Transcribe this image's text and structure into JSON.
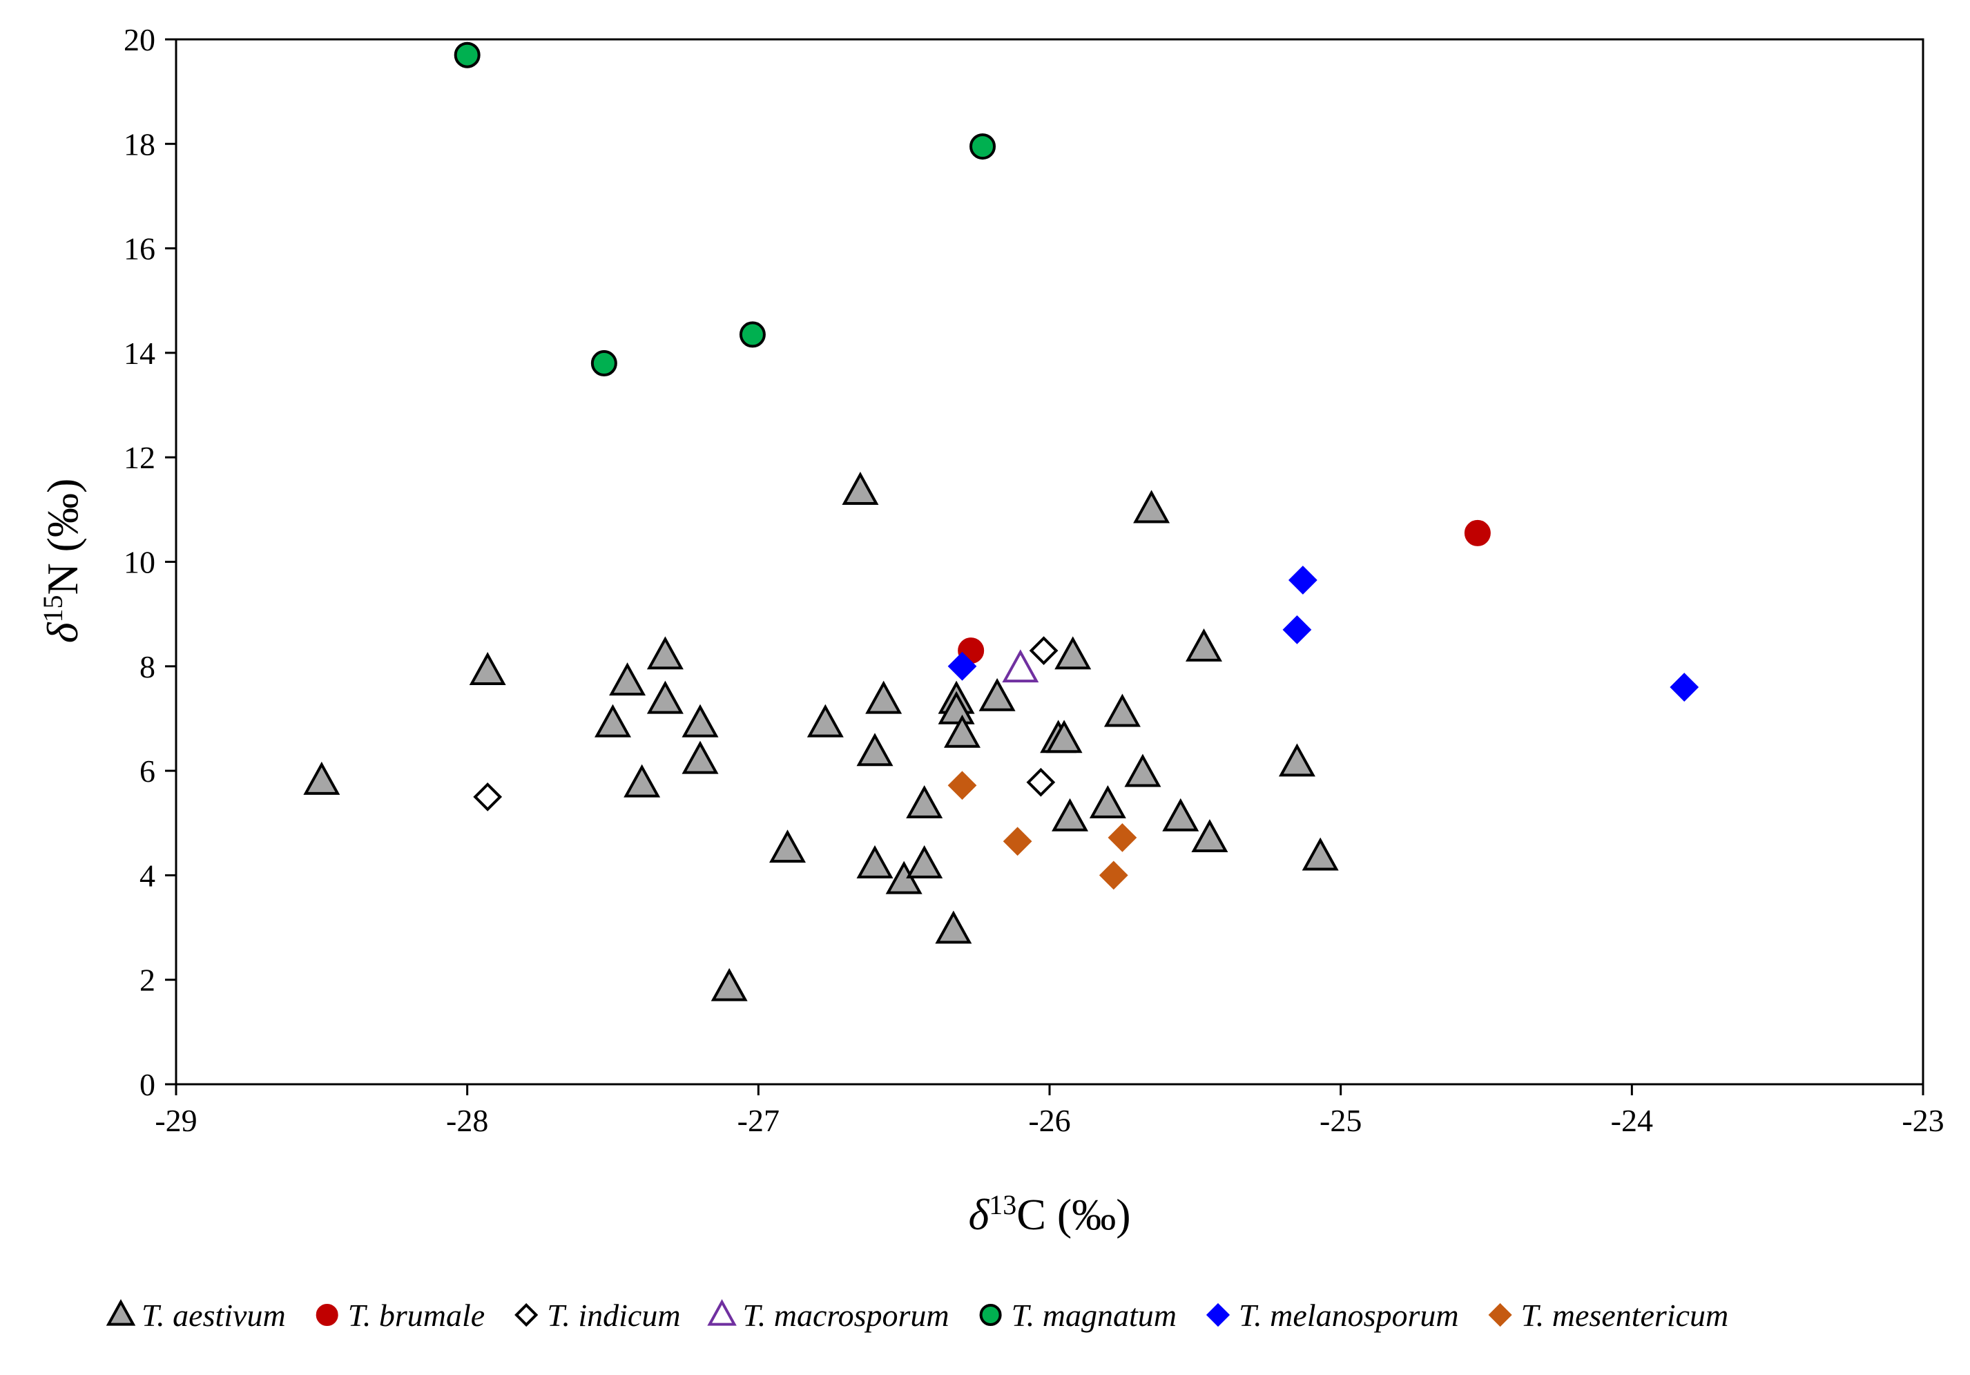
{
  "chart_data": {
    "type": "scatter",
    "xlabel": {
      "symbol": "δ",
      "sup": "13",
      "rest": "C (‰)"
    },
    "ylabel": {
      "symbol": "δ",
      "sup": "15",
      "rest": "N (‰)"
    },
    "xlim": [
      -29,
      -23
    ],
    "ylim": [
      0,
      20
    ],
    "xticks": [
      -29,
      -28,
      -27,
      -26,
      -25,
      -24,
      -23
    ],
    "xtick_labels": [
      "-29",
      "-28",
      "-27",
      "-26",
      "-25",
      "-24",
      "-23"
    ],
    "yticks": [
      0,
      2,
      4,
      6,
      8,
      10,
      12,
      14,
      16,
      18,
      20
    ],
    "ytick_labels": [
      "0",
      "2",
      "4",
      "6",
      "8",
      "10",
      "12",
      "14",
      "16",
      "18",
      "20"
    ],
    "grid": false,
    "legend_position": "bottom",
    "series": [
      {
        "name": "T. aestivum",
        "marker": "triangle",
        "fill": "#a6a6a6",
        "stroke": "#000000",
        "points": [
          [
            -28.5,
            5.8
          ],
          [
            -27.93,
            7.9
          ],
          [
            -27.5,
            6.9
          ],
          [
            -27.45,
            7.7
          ],
          [
            -27.4,
            5.75
          ],
          [
            -27.32,
            8.2
          ],
          [
            -27.32,
            7.35
          ],
          [
            -27.2,
            6.9
          ],
          [
            -27.2,
            6.2
          ],
          [
            -27.1,
            1.85
          ],
          [
            -26.9,
            4.5
          ],
          [
            -26.77,
            6.9
          ],
          [
            -26.65,
            11.35
          ],
          [
            -26.6,
            6.35
          ],
          [
            -26.6,
            4.2
          ],
          [
            -26.57,
            7.35
          ],
          [
            -26.5,
            3.9
          ],
          [
            -26.43,
            5.35
          ],
          [
            -26.43,
            4.2
          ],
          [
            -26.33,
            2.95
          ],
          [
            -26.32,
            7.35
          ],
          [
            -26.32,
            7.15
          ],
          [
            -26.3,
            6.7
          ],
          [
            -26.18,
            7.4
          ],
          [
            -25.97,
            6.6
          ],
          [
            -25.95,
            6.6
          ],
          [
            -25.93,
            5.1
          ],
          [
            -25.92,
            8.2
          ],
          [
            -25.8,
            5.35
          ],
          [
            -25.75,
            7.1
          ],
          [
            -25.68,
            5.95
          ],
          [
            -25.65,
            11.0
          ],
          [
            -25.55,
            5.1
          ],
          [
            -25.47,
            8.35
          ],
          [
            -25.45,
            4.7
          ],
          [
            -25.15,
            6.15
          ],
          [
            -25.07,
            4.35
          ]
        ]
      },
      {
        "name": "T. brumale",
        "marker": "circle",
        "fill": "#c00000",
        "stroke": "#c00000",
        "points": [
          [
            -26.27,
            8.3
          ],
          [
            -24.53,
            10.55
          ]
        ]
      },
      {
        "name": "T. indicum",
        "marker": "diamond",
        "fill": "#ffffff",
        "stroke": "#000000",
        "points": [
          [
            -27.93,
            5.5
          ],
          [
            -26.02,
            8.3
          ],
          [
            -26.03,
            5.78
          ]
        ]
      },
      {
        "name": "T. macrosporum",
        "marker": "triangle",
        "fill": "#ffffff",
        "stroke": "#7030a0",
        "points": [
          [
            -26.1,
            7.95
          ]
        ]
      },
      {
        "name": "T. magnatum",
        "marker": "circle",
        "fill": "#00b050",
        "stroke": "#000000",
        "points": [
          [
            -28.0,
            19.7
          ],
          [
            -27.53,
            13.8
          ],
          [
            -27.02,
            14.35
          ],
          [
            -26.23,
            17.95
          ]
        ]
      },
      {
        "name": "T. melanosporum",
        "marker": "diamond",
        "fill": "#0000ff",
        "stroke": "#0000ff",
        "points": [
          [
            -26.3,
            8.0
          ],
          [
            -25.13,
            9.65
          ],
          [
            -25.15,
            8.7
          ],
          [
            -23.82,
            7.6
          ]
        ]
      },
      {
        "name": "T. mesentericum",
        "marker": "diamond",
        "fill": "#c55a11",
        "stroke": "#c55a11",
        "points": [
          [
            -26.3,
            5.72
          ],
          [
            -26.11,
            4.65
          ],
          [
            -25.75,
            4.72
          ],
          [
            -25.78,
            4.0
          ]
        ]
      }
    ]
  }
}
